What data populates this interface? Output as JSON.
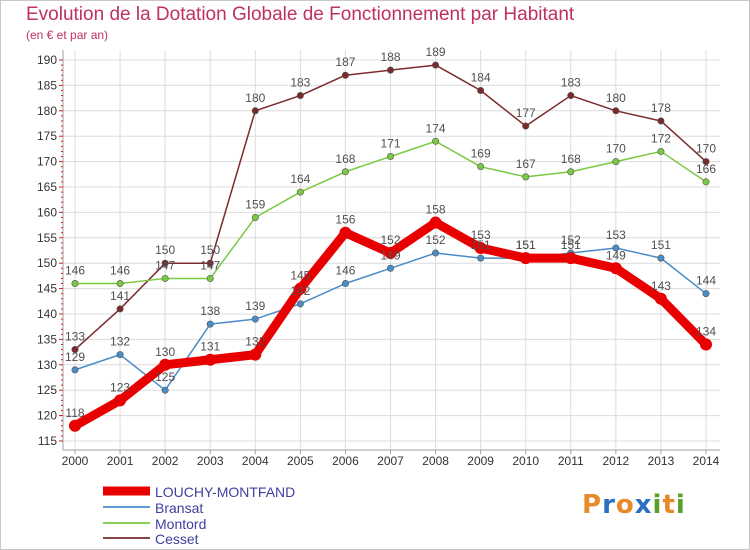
{
  "header": {
    "title": "Evolution de la Dotation Globale de Fonctionnement par Habitant",
    "subtitle": "(en € et par an)"
  },
  "brand": {
    "logo_parts": [
      "P",
      "r",
      "o",
      "x",
      "i",
      "t",
      "i"
    ],
    "logo_colors": [
      "#e88a2a",
      "#2a6fc0",
      "#e88a2a",
      "#2a6fc0",
      "#5aa02a",
      "#e88a2a",
      "#5aa02a"
    ]
  },
  "colors": {
    "grid": "#dcdcdc",
    "axis": "#a0a0a0",
    "tick_red": "#cc2222",
    "value_label": "#505050",
    "legend_text": "#4040a0"
  },
  "chart_data": {
    "type": "line",
    "title": "Evolution de la Dotation Globale de Fonctionnement par Habitant",
    "subtitle": "(en € et par an)",
    "xlabel": "",
    "ylabel": "",
    "ylim": [
      115,
      190
    ],
    "yticks": [
      115,
      120,
      125,
      130,
      135,
      140,
      145,
      150,
      155,
      160,
      165,
      170,
      175,
      180,
      185,
      190
    ],
    "categories": [
      "2000",
      "2001",
      "2002",
      "2003",
      "2004",
      "2005",
      "2006",
      "2007",
      "2008",
      "2009",
      "2010",
      "2011",
      "2012",
      "2013",
      "2014"
    ],
    "grid": true,
    "legend_position": "bottom-left",
    "series": [
      {
        "name": "LOUCHY-MONTFAND",
        "color": "#e80000",
        "width": 9,
        "values": [
          118,
          123,
          130,
          131,
          132,
          145,
          156,
          152,
          158,
          153,
          151,
          151,
          149,
          143,
          134
        ],
        "labels": [
          "118",
          "123",
          "130",
          "131",
          "132",
          "145",
          "156",
          "152",
          "158",
          "153",
          "151",
          "151",
          "149",
          "143",
          "134"
        ]
      },
      {
        "name": "Bransat",
        "color": "#4a8cc8",
        "width": 1.5,
        "values": [
          129,
          132,
          125,
          138,
          139,
          142,
          146,
          149,
          152,
          151,
          151,
          152,
          153,
          151,
          144
        ],
        "labels": [
          "129",
          "132",
          "125",
          "138",
          "139",
          "142",
          "146",
          "149",
          "152",
          "151",
          "151",
          "152",
          "153",
          "151",
          "144"
        ]
      },
      {
        "name": "Montord",
        "color": "#7ac943",
        "width": 1.5,
        "values": [
          146,
          146,
          147,
          147,
          159,
          164,
          168,
          171,
          174,
          169,
          167,
          168,
          170,
          172,
          166
        ],
        "labels": [
          "146",
          "146",
          "147",
          "147",
          "159",
          "164",
          "168",
          "171",
          "174",
          "169",
          "167",
          "168",
          "170",
          "172",
          "166"
        ]
      },
      {
        "name": "Cesset",
        "color": "#7a2a2a",
        "width": 1.5,
        "values": [
          133,
          141,
          150,
          150,
          180,
          183,
          187,
          188,
          189,
          184,
          177,
          183,
          180,
          178,
          170
        ],
        "labels": [
          "133",
          "141",
          "150",
          "150",
          "180",
          "183",
          "187",
          "188",
          "189",
          "184",
          "177",
          "183",
          "180",
          "178",
          "170"
        ]
      }
    ]
  }
}
